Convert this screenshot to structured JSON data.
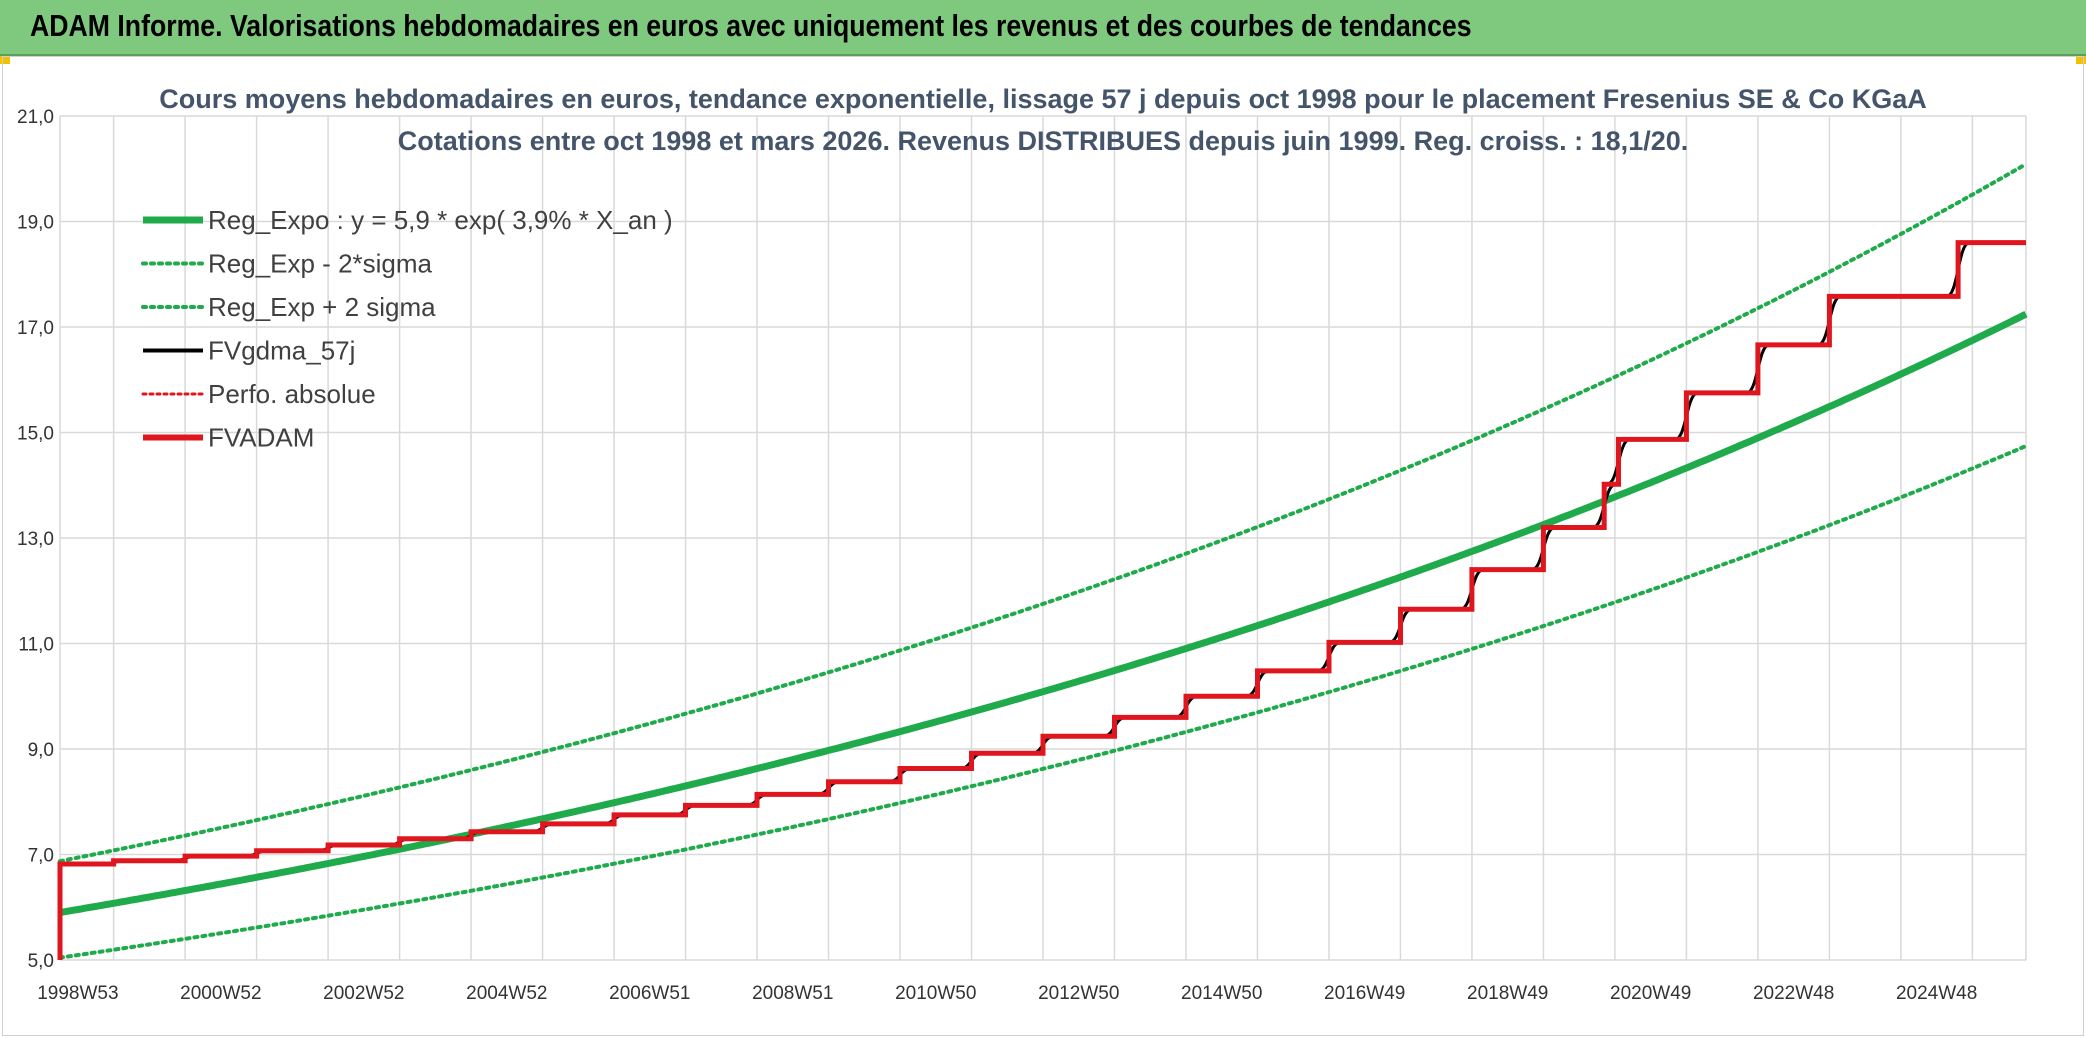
{
  "header": {
    "title": "ADAM Informe. Valorisations hebdomadaires en euros avec uniquement les revenus et des courbes de tendances"
  },
  "colors": {
    "header_bg": "#7fc97f",
    "trend": "#1faa4b",
    "sigma": "#1faa4b",
    "fvgdma": "#000000",
    "perfo": "#e0161e",
    "fvadam": "#e0161e",
    "grid": "#d9d9d9"
  },
  "chart_data": {
    "type": "line",
    "title_line1": "Cours moyens hebdomadaires en euros, tendance exponentielle, lissage 57 j depuis oct 1998 pour le placement Fresenius SE & Co KGaA",
    "title_line2": "Cotations entre oct 1998 et mars 2026. Revenus DISTRIBUES depuis juin 1999. Reg. croiss. : 18,1/20.",
    "y_range": [
      5.0,
      21.0
    ],
    "y_ticks": [
      "5,0",
      "7,0",
      "9,0",
      "11,0",
      "13,0",
      "15,0",
      "17,0",
      "19,0",
      "21,0"
    ],
    "x_range": [
      1998.75,
      2026.25
    ],
    "x_tick_labels": [
      "1998W53",
      "2000W52",
      "2002W52",
      "2004W52",
      "2006W51",
      "2008W51",
      "2010W50",
      "2012W50",
      "2014W50",
      "2016W49",
      "2018W49",
      "2020W49",
      "2022W48",
      "2024W48"
    ],
    "legend": [
      {
        "key": "reg_expo",
        "label": "Reg_Expo : y = 5,9 * exp( 3,9% *  X_an )"
      },
      {
        "key": "reg_minus",
        "label": "Reg_Exp - 2*sigma"
      },
      {
        "key": "reg_plus",
        "label": "Reg_Exp + 2 sigma"
      },
      {
        "key": "fvgdma",
        "label": "FVgdma_57j"
      },
      {
        "key": "perfo",
        "label": "Perfo. absolue"
      },
      {
        "key": "fvadam",
        "label": "FVADAM"
      }
    ],
    "trend": {
      "a": 5.9,
      "rate": 0.039,
      "sigma_factor_upper": 1.165,
      "sigma_factor_lower": 0.855
    },
    "fvadam_steps": [
      {
        "x": 1998.75,
        "y": 6.82
      },
      {
        "x": 1999.5,
        "y": 6.88
      },
      {
        "x": 2000.5,
        "y": 6.97
      },
      {
        "x": 2001.5,
        "y": 7.07
      },
      {
        "x": 2002.5,
        "y": 7.18
      },
      {
        "x": 2003.5,
        "y": 7.3
      },
      {
        "x": 2004.5,
        "y": 7.43
      },
      {
        "x": 2005.5,
        "y": 7.58
      },
      {
        "x": 2006.5,
        "y": 7.75
      },
      {
        "x": 2007.5,
        "y": 7.93
      },
      {
        "x": 2008.5,
        "y": 8.14
      },
      {
        "x": 2009.5,
        "y": 8.38
      },
      {
        "x": 2010.5,
        "y": 8.63
      },
      {
        "x": 2011.5,
        "y": 8.92
      },
      {
        "x": 2012.5,
        "y": 9.24
      },
      {
        "x": 2013.5,
        "y": 9.6
      },
      {
        "x": 2014.5,
        "y": 10.0
      },
      {
        "x": 2015.5,
        "y": 10.48
      },
      {
        "x": 2016.5,
        "y": 11.02
      },
      {
        "x": 2017.5,
        "y": 11.65
      },
      {
        "x": 2018.5,
        "y": 12.4
      },
      {
        "x": 2019.5,
        "y": 13.2
      },
      {
        "x": 2020.35,
        "y": 14.02
      },
      {
        "x": 2020.55,
        "y": 14.87
      },
      {
        "x": 2021.5,
        "y": 15.75
      },
      {
        "x": 2022.5,
        "y": 16.66
      },
      {
        "x": 2023.5,
        "y": 17.58
      },
      {
        "x": 2025.3,
        "y": 18.6
      }
    ],
    "fvadam_end_x": 2026.25,
    "fvadam_start_y": 5.0
  }
}
